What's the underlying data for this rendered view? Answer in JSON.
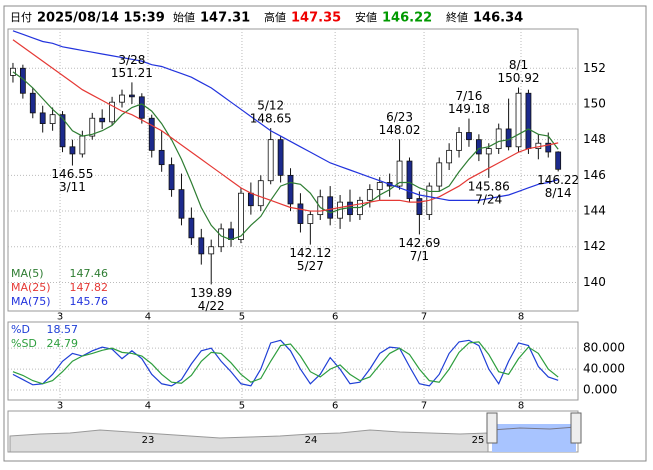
{
  "chart_data": {
    "type": "candlestick",
    "header": {
      "date_label": "日付",
      "date": "2025/08/14 15:39",
      "open_label": "始値",
      "open": 147.31,
      "high_label": "高値",
      "high": 147.35,
      "low_label": "安値",
      "low": 146.22,
      "close_label": "終値",
      "close": 146.34
    },
    "xlim": [
      -0.5,
      57
    ],
    "xticks": [
      {
        "value": 4.75,
        "label": "3"
      },
      {
        "value": 13.62,
        "label": "4"
      },
      {
        "value": 23.1,
        "label": "5"
      },
      {
        "value": 32.5,
        "label": "6"
      },
      {
        "value": 41.47,
        "label": "7"
      },
      {
        "value": 51.25,
        "label": "8"
      }
    ],
    "ylim": [
      138.4,
      154.2
    ],
    "yticks": [
      140,
      142,
      144,
      146,
      148,
      150,
      152
    ],
    "grid": true,
    "up_color": "#ffffff",
    "down_color": "#1c2a8c",
    "candles": {
      "open": [
        151.6,
        152.0,
        150.6,
        149.5,
        148.9,
        149.4,
        147.6,
        147.2,
        148.2,
        149.2,
        149.0,
        150.1,
        150.5,
        150.4,
        149.2,
        147.4,
        146.6,
        145.2,
        143.6,
        142.5,
        141.6,
        142.0,
        143.0,
        142.4,
        145.0,
        144.3,
        145.7,
        148.0,
        146.0,
        144.4,
        143.3,
        143.8,
        144.8,
        143.6,
        144.5,
        143.8,
        144.6,
        145.2,
        145.6,
        145.4,
        146.8,
        144.7,
        143.8,
        145.4,
        146.7,
        147.4,
        148.4,
        148.0,
        147.2,
        147.5,
        148.6,
        147.6,
        150.6,
        147.5,
        147.8,
        147.31
      ],
      "high": [
        152.3,
        152.2,
        150.9,
        149.9,
        149.8,
        149.6,
        148.0,
        148.5,
        149.5,
        149.7,
        150.4,
        150.8,
        151.21,
        150.6,
        149.4,
        148.5,
        147.0,
        146.1,
        144.2,
        143.0,
        142.4,
        143.3,
        143.4,
        145.3,
        145.6,
        146.0,
        148.65,
        148.2,
        146.4,
        145.0,
        144.0,
        145.2,
        145.4,
        144.9,
        145.2,
        144.8,
        145.5,
        145.9,
        146.1,
        148.02,
        147.0,
        145.1,
        145.6,
        147.0,
        147.8,
        148.7,
        149.18,
        148.3,
        147.8,
        148.9,
        150.3,
        150.92,
        150.8,
        148.3,
        148.4,
        147.35
      ],
      "low": [
        151.2,
        150.3,
        149.2,
        148.4,
        148.5,
        147.3,
        146.55,
        147.0,
        148.0,
        148.6,
        148.8,
        149.8,
        150.0,
        148.9,
        147.0,
        146.2,
        144.8,
        143.2,
        142.1,
        141.0,
        139.89,
        141.7,
        142.0,
        142.2,
        143.8,
        144.0,
        145.5,
        145.6,
        144.0,
        142.8,
        142.12,
        143.5,
        143.2,
        143.0,
        143.4,
        143.5,
        144.2,
        144.6,
        144.8,
        145.2,
        144.5,
        142.69,
        143.5,
        145.1,
        146.3,
        147.0,
        147.6,
        146.8,
        145.86,
        147.2,
        147.4,
        147.3,
        147.2,
        146.9,
        147.0,
        146.22
      ],
      "close": [
        152.0,
        150.6,
        149.5,
        148.9,
        149.4,
        147.6,
        147.2,
        148.2,
        149.2,
        149.0,
        150.1,
        150.5,
        150.4,
        149.2,
        147.4,
        146.6,
        145.2,
        143.6,
        142.5,
        141.6,
        142.0,
        143.0,
        142.4,
        145.0,
        144.3,
        145.7,
        148.0,
        146.0,
        144.4,
        143.3,
        143.8,
        144.8,
        143.6,
        144.5,
        143.8,
        144.6,
        145.2,
        145.6,
        145.4,
        146.8,
        144.7,
        143.8,
        145.4,
        146.7,
        147.4,
        148.4,
        148.0,
        147.2,
        147.5,
        148.6,
        147.6,
        150.6,
        147.5,
        147.8,
        147.31,
        146.34
      ]
    },
    "series": [
      {
        "name": "MA(5)",
        "color": "#2e7d32",
        "values": [
          151.8,
          151.4,
          150.9,
          150.3,
          149.7,
          149.2,
          148.5,
          148.2,
          148.3,
          148.5,
          148.8,
          149.4,
          149.8,
          150.0,
          149.6,
          148.9,
          148.0,
          146.9,
          145.6,
          144.2,
          143.2,
          142.6,
          142.4,
          142.6,
          143.2,
          143.7,
          144.6,
          145.4,
          145.6,
          145.5,
          145.0,
          144.2,
          143.9,
          144.1,
          144.2,
          144.2,
          144.5,
          144.9,
          145.2,
          145.6,
          145.6,
          145.3,
          145.1,
          145.1,
          145.4,
          146.2,
          146.9,
          147.5,
          147.6,
          147.9,
          148.0,
          148.3,
          148.6,
          148.3,
          148.2,
          147.46
        ]
      },
      {
        "name": "MA(25)",
        "color": "#e53935",
        "values": [
          153.6,
          153.2,
          152.8,
          152.4,
          152.0,
          151.6,
          151.2,
          150.8,
          150.5,
          150.2,
          149.9,
          149.6,
          149.4,
          149.1,
          148.8,
          148.5,
          148.1,
          147.7,
          147.3,
          146.9,
          146.5,
          146.1,
          145.7,
          145.3,
          145.0,
          144.8,
          144.6,
          144.4,
          144.2,
          144.1,
          144.0,
          144.0,
          144.1,
          144.2,
          144.3,
          144.4,
          144.5,
          144.6,
          144.6,
          144.6,
          144.5,
          144.5,
          144.6,
          144.8,
          145.1,
          145.4,
          145.8,
          146.1,
          146.4,
          146.7,
          147.0,
          147.3,
          147.5,
          147.6,
          147.7,
          147.82
        ]
      },
      {
        "name": "MA(75)",
        "color": "#2233dd",
        "values": [
          154.1,
          153.9,
          153.7,
          153.5,
          153.4,
          153.2,
          153.1,
          153.0,
          152.9,
          152.8,
          152.7,
          152.6,
          152.5,
          152.4,
          152.2,
          152.1,
          151.9,
          151.7,
          151.5,
          151.2,
          150.9,
          150.5,
          150.1,
          149.7,
          149.3,
          148.9,
          148.5,
          148.2,
          147.9,
          147.6,
          147.3,
          147.0,
          146.7,
          146.5,
          146.3,
          146.1,
          145.9,
          145.7,
          145.5,
          145.3,
          145.1,
          144.9,
          144.8,
          144.7,
          144.6,
          144.6,
          144.6,
          144.6,
          144.7,
          144.8,
          144.9,
          145.1,
          145.3,
          145.5,
          145.6,
          145.76
        ]
      }
    ],
    "annotations": [
      {
        "value": 146.55,
        "date": "3/11"
      },
      {
        "value": 151.21,
        "date": "3/28"
      },
      {
        "value": 139.89,
        "date": "4/22"
      },
      {
        "value": 148.65,
        "date": "5/12"
      },
      {
        "value": 142.12,
        "date": "5/27"
      },
      {
        "value": 148.02,
        "date": "6/23"
      },
      {
        "value": 142.69,
        "date": "7/1"
      },
      {
        "value": 149.18,
        "date": "7/16"
      },
      {
        "value": 145.86,
        "date": "7/24"
      },
      {
        "value": 150.92,
        "date": "8/1"
      },
      {
        "value": 146.22,
        "date": "8/14"
      }
    ],
    "oscillator": {
      "ylim": [
        -19,
        130
      ],
      "yticks": [
        {
          "value": 80,
          "label": "80.000"
        },
        {
          "value": 40,
          "label": "40.000"
        },
        {
          "value": 0,
          "label": "0.000"
        }
      ],
      "series": [
        {
          "name": "%D",
          "color": "#1f3fd6",
          "values": [
            30,
            20,
            10,
            12,
            30,
            55,
            70,
            65,
            75,
            82,
            78,
            60,
            75,
            60,
            30,
            12,
            8,
            20,
            50,
            75,
            80,
            55,
            35,
            12,
            8,
            40,
            90,
            95,
            75,
            40,
            12,
            30,
            62,
            40,
            12,
            15,
            40,
            70,
            82,
            80,
            45,
            12,
            8,
            30,
            70,
            92,
            95,
            85,
            40,
            12,
            55,
            90,
            85,
            45,
            25,
            18.57
          ]
        },
        {
          "name": "%SD",
          "color": "#2e9e3e",
          "values": [
            35,
            28,
            18,
            12,
            18,
            35,
            55,
            65,
            70,
            76,
            80,
            72,
            70,
            65,
            50,
            30,
            15,
            13,
            28,
            55,
            72,
            70,
            52,
            30,
            15,
            22,
            55,
            85,
            88,
            65,
            35,
            25,
            40,
            48,
            30,
            18,
            25,
            48,
            70,
            80,
            68,
            40,
            18,
            15,
            40,
            72,
            90,
            92,
            68,
            35,
            30,
            60,
            82,
            70,
            40,
            24.79
          ]
        }
      ]
    },
    "navigator": {
      "labels": [
        "23",
        "24",
        "25"
      ]
    }
  }
}
